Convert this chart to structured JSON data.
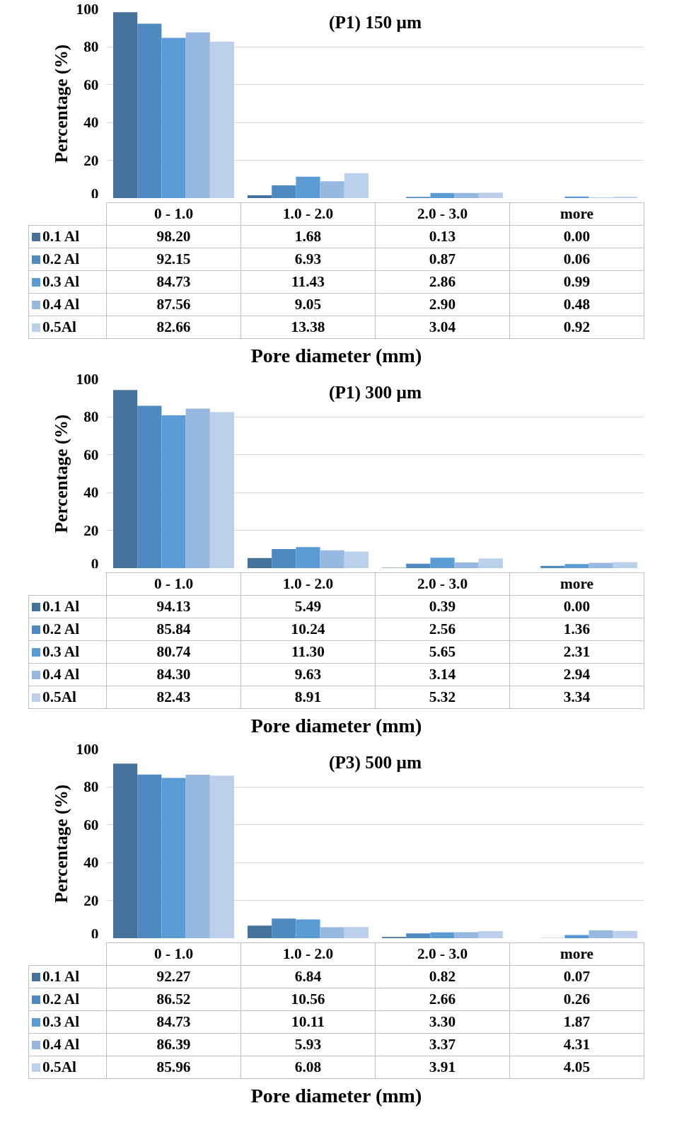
{
  "chart_data": [
    {
      "type": "bar",
      "title": "(P1) 150 μm",
      "xlabel": "Pore diameter (mm)",
      "ylabel": "Percentage (%)",
      "categories": [
        "0 - 1.0",
        "1.0 - 2.0",
        "2.0 - 3.0",
        "more"
      ],
      "ylim": [
        0,
        100
      ],
      "yticks": [
        0,
        20,
        40,
        60,
        80,
        100
      ],
      "grid": "y",
      "legend": "bottom",
      "series": [
        {
          "name": "0.1 Al",
          "color": "#44729d",
          "values": [
            98.2,
            1.68,
            0.13,
            0.0
          ],
          "value_labels": [
            "98.20",
            "1.68",
            "0.13",
            "0.00"
          ]
        },
        {
          "name": "0.2 Al",
          "color": "#4e89c0",
          "values": [
            92.15,
            6.93,
            0.87,
            0.06
          ],
          "value_labels": [
            "92.15",
            "6.93",
            "0.87",
            "0.06"
          ]
        },
        {
          "name": "0.3 Al",
          "color": "#5b9bd5",
          "values": [
            84.73,
            11.43,
            2.86,
            0.99
          ],
          "value_labels": [
            "84.73",
            "11.43",
            "2.86",
            "0.99"
          ]
        },
        {
          "name": "0.4 Al",
          "color": "#97b8e0",
          "values": [
            87.56,
            9.05,
            2.9,
            0.48
          ],
          "value_labels": [
            "87.56",
            "9.05",
            "2.90",
            "0.48"
          ]
        },
        {
          "name": "0.5Al",
          "color": "#bdd0eb",
          "values": [
            82.66,
            13.38,
            3.04,
            0.92
          ],
          "value_labels": [
            "82.66",
            "13.38",
            "3.04",
            "0.92"
          ]
        }
      ]
    },
    {
      "type": "bar",
      "title": "(P1) 300 μm",
      "xlabel": "Pore diameter (mm)",
      "ylabel": "Percentage (%)",
      "categories": [
        "0 - 1.0",
        "1.0 - 2.0",
        "2.0 - 3.0",
        "more"
      ],
      "ylim": [
        0,
        100
      ],
      "yticks": [
        0,
        20,
        40,
        60,
        80,
        100
      ],
      "grid": "y",
      "legend": "bottom",
      "series": [
        {
          "name": "0.1 Al",
          "color": "#44729d",
          "values": [
            94.13,
            5.49,
            0.39,
            0.0
          ],
          "value_labels": [
            "94.13",
            "5.49",
            "0.39",
            "0.00"
          ]
        },
        {
          "name": "0.2 Al",
          "color": "#4e89c0",
          "values": [
            85.84,
            10.24,
            2.56,
            1.36
          ],
          "value_labels": [
            "85.84",
            "10.24",
            "2.56",
            "1.36"
          ]
        },
        {
          "name": "0.3 Al",
          "color": "#5b9bd5",
          "values": [
            80.74,
            11.3,
            5.65,
            2.31
          ],
          "value_labels": [
            "80.74",
            "11.30",
            "5.65",
            "2.31"
          ]
        },
        {
          "name": "0.4 Al",
          "color": "#97b8e0",
          "values": [
            84.3,
            9.63,
            3.14,
            2.94
          ],
          "value_labels": [
            "84.30",
            "9.63",
            "3.14",
            "2.94"
          ]
        },
        {
          "name": "0.5Al",
          "color": "#bdd0eb",
          "values": [
            82.43,
            8.91,
            5.32,
            3.34
          ],
          "value_labels": [
            "82.43",
            "8.91",
            "5.32",
            "3.34"
          ]
        }
      ]
    },
    {
      "type": "bar",
      "title": "(P3) 500 μm",
      "xlabel": "Pore diameter (mm)",
      "ylabel": "Percentage (%)",
      "categories": [
        "0 - 1.0",
        "1.0 - 2.0",
        "2.0 - 3.0",
        "more"
      ],
      "ylim": [
        0,
        100
      ],
      "yticks": [
        0,
        20,
        40,
        60,
        80,
        100
      ],
      "grid": "y",
      "legend": "bottom",
      "series": [
        {
          "name": "0.1 Al",
          "color": "#44729d",
          "values": [
            92.27,
            6.84,
            0.82,
            0.07
          ],
          "value_labels": [
            "92.27",
            "6.84",
            "0.82",
            "0.07"
          ]
        },
        {
          "name": "0.2 Al",
          "color": "#4e89c0",
          "values": [
            86.52,
            10.56,
            2.66,
            0.26
          ],
          "value_labels": [
            "86.52",
            "10.56",
            "2.66",
            "0.26"
          ]
        },
        {
          "name": "0.3 Al",
          "color": "#5b9bd5",
          "values": [
            84.73,
            10.11,
            3.3,
            1.87
          ],
          "value_labels": [
            "84.73",
            "10.11",
            "3.30",
            "1.87"
          ]
        },
        {
          "name": "0.4 Al",
          "color": "#97b8e0",
          "values": [
            86.39,
            5.93,
            3.37,
            4.31
          ],
          "value_labels": [
            "86.39",
            "5.93",
            "3.37",
            "4.31"
          ]
        },
        {
          "name": "0.5Al",
          "color": "#bdd0eb",
          "values": [
            85.96,
            6.08,
            3.91,
            4.05
          ],
          "value_labels": [
            "85.96",
            "6.08",
            "3.91",
            "4.05"
          ]
        }
      ]
    }
  ]
}
